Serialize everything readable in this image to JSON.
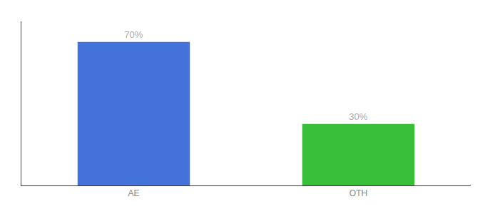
{
  "chart_data": {
    "type": "bar",
    "categories": [
      "AE",
      "OTH"
    ],
    "values": [
      70,
      30
    ],
    "colors": [
      "#4472db",
      "#3abf3a"
    ],
    "value_labels": [
      "70%",
      "30%"
    ],
    "data_labels": true,
    "ylim": [
      0,
      80
    ],
    "tick_labels": "x",
    "grid": false
  }
}
